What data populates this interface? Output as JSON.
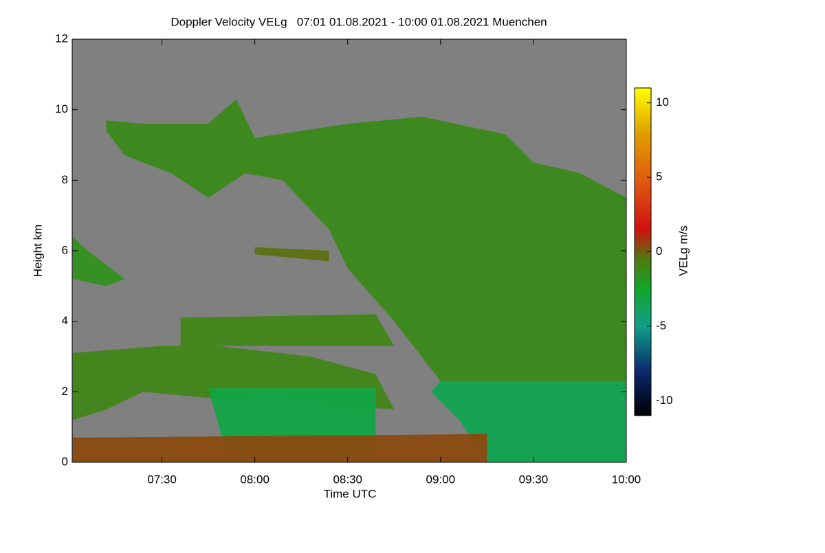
{
  "chart_data": {
    "type": "heatmap",
    "title": "Doppler Velocity VELg   07:01 01.08.2021 - 10:00 01.08.2021 Muenchen",
    "x_label": "Time UTC",
    "y_label": "Height km",
    "colorbar_label": "VELg m/s",
    "background_color": "#808080",
    "xlim": [
      7.0167,
      10
    ],
    "xticks": [
      {
        "value": 7.5,
        "label": "07:30"
      },
      {
        "value": 8,
        "label": "08:00"
      },
      {
        "value": 8.5,
        "label": "08:30"
      },
      {
        "value": 9,
        "label": "09:00"
      },
      {
        "value": 9.5,
        "label": "09:30"
      },
      {
        "value": 10,
        "label": "10:00"
      }
    ],
    "ylim": [
      0,
      12
    ],
    "yticks": [
      0,
      2,
      4,
      6,
      8,
      10,
      12
    ],
    "clim": [
      -11,
      11
    ],
    "cticks": [
      -10,
      -5,
      0,
      5,
      10
    ],
    "colorscale": [
      [
        -11,
        "#000000"
      ],
      [
        -8,
        "#0a2a6e"
      ],
      [
        -5,
        "#10a08a"
      ],
      [
        -2.5,
        "#12a52a"
      ],
      [
        -0.5,
        "#507a10"
      ],
      [
        1.5,
        "#d01010"
      ],
      [
        5,
        "#e06010"
      ],
      [
        8,
        "#e0a000"
      ],
      [
        11,
        "#ffff00"
      ]
    ],
    "regions": [
      {
        "value": -1.2,
        "x": [
          7.2,
          7.4,
          7.75,
          7.9,
          8.0,
          8.5,
          8.9,
          9.35,
          9.5,
          9.75,
          10,
          10,
          9.0,
          8.75,
          8.5,
          8.4,
          8.15,
          7.95,
          7.75,
          7.55,
          7.3,
          7.2
        ],
        "y": [
          9.7,
          9.6,
          9.6,
          10.3,
          9.2,
          9.6,
          9.8,
          9.3,
          8.5,
          8.2,
          7.5,
          2.3,
          2.3,
          4.0,
          5.5,
          6.6,
          8.0,
          8.2,
          7.5,
          8.2,
          8.7,
          9.4
        ]
      },
      {
        "value": -3.5,
        "x": [
          9.0,
          10,
          10,
          9.25,
          9.1,
          8.95
        ],
        "y": [
          2.3,
          2.3,
          0,
          0,
          1.2,
          2.0
        ]
      },
      {
        "value": -1.0,
        "x": [
          7.02,
          7.5,
          7.8,
          8.3,
          8.65,
          8.75,
          8.5,
          8.1,
          7.8,
          7.4,
          7.2,
          7.02
        ],
        "y": [
          3.1,
          3.3,
          3.3,
          3.0,
          2.5,
          1.5,
          1.6,
          2.0,
          1.8,
          2.0,
          1.5,
          1.2
        ]
      },
      {
        "value": -3.2,
        "x": [
          7.75,
          8.65,
          8.65,
          7.85
        ],
        "y": [
          2.1,
          2.1,
          0.2,
          0.2
        ]
      },
      {
        "value": -1.5,
        "x": [
          7.02,
          7.1,
          7.3,
          7.2,
          7.02
        ],
        "y": [
          6.4,
          6.0,
          5.2,
          5.0,
          5.2
        ]
      },
      {
        "value": -1.0,
        "x": [
          7.6,
          8.65,
          8.75,
          7.6
        ],
        "y": [
          4.1,
          4.2,
          3.3,
          3.3
        ]
      },
      {
        "value": 0.4,
        "x": [
          7.02,
          9.25,
          9.25,
          7.02
        ],
        "y": [
          0.7,
          0.8,
          0,
          0
        ]
      },
      {
        "value": -0.3,
        "x": [
          8.0,
          8.4,
          8.4,
          8.0
        ],
        "y": [
          6.1,
          6.0,
          5.7,
          5.9
        ]
      }
    ]
  }
}
